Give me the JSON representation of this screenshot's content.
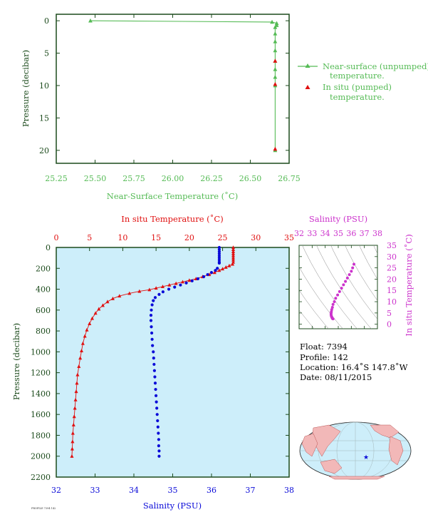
{
  "colors": {
    "green": "#55bb55",
    "red": "#e01010",
    "blue": "#0a0ad8",
    "magenta": "#cc33cc",
    "axisDark": "#1b4a1b",
    "plotBg": "#cdeefa",
    "land": "#f2b8b8",
    "ocean": "#cdeefa"
  },
  "chart_data": [
    {
      "type": "line",
      "xlabel": "Near-Surface Temperature (˚C)",
      "ylabel": "Pressure (decibar)",
      "xlim": [
        25.25,
        26.75
      ],
      "ylim": [
        22,
        -1
      ],
      "xticks": [
        "25.25",
        "25.50",
        "25.75",
        "26.00",
        "26.25",
        "26.50",
        "26.75"
      ],
      "yticks": [
        "0",
        "5",
        "10",
        "15",
        "20"
      ],
      "legend_position": "right",
      "series": [
        {
          "name": "Near-surface (unpumped) temperature.",
          "color": "#55bb55",
          "points": [
            [
              25.47,
              0.0
            ],
            [
              26.64,
              0.2
            ],
            [
              26.67,
              0.4
            ],
            [
              26.67,
              0.7
            ],
            [
              26.66,
              1.0
            ],
            [
              26.66,
              2.0
            ],
            [
              26.66,
              3.2
            ],
            [
              26.66,
              4.6
            ],
            [
              26.66,
              6.2
            ],
            [
              26.66,
              7.5
            ],
            [
              26.66,
              8.7
            ],
            [
              26.66,
              10.0
            ],
            [
              26.66,
              20.0
            ]
          ]
        },
        {
          "name": "In situ (pumped) temperature.",
          "color": "#e01010",
          "points": [
            [
              26.66,
              6.2
            ],
            [
              26.66,
              9.8
            ],
            [
              26.66,
              19.8
            ]
          ]
        }
      ]
    },
    {
      "type": "scatter",
      "top_xlabel": "In situ Temperature (˚C)",
      "bottom_xlabel": "Salinity (PSU)",
      "ylabel": "Pressure (decibar)",
      "temp_xlim": [
        0,
        35
      ],
      "sal_xlim": [
        32,
        38
      ],
      "ylim": [
        2200,
        0
      ],
      "temp_ticks": [
        "0",
        "5",
        "10",
        "15",
        "20",
        "25",
        "30",
        "35"
      ],
      "sal_ticks": [
        "32",
        "33",
        "34",
        "35",
        "36",
        "37",
        "38"
      ],
      "yticks": [
        "0",
        "200",
        "400",
        "600",
        "800",
        "1000",
        "1200",
        "1400",
        "1600",
        "1800",
        "2000",
        "2200"
      ],
      "series": [
        {
          "name": "In situ Temperature (˚C)",
          "color": "#e01010",
          "axis": "temp",
          "points": [
            [
              26.6,
              0
            ],
            [
              26.6,
              20
            ],
            [
              26.6,
              40
            ],
            [
              26.6,
              60
            ],
            [
              26.6,
              80
            ],
            [
              26.6,
              100
            ],
            [
              26.6,
              120
            ],
            [
              26.6,
              140
            ],
            [
              26.5,
              160
            ],
            [
              26.0,
              175
            ],
            [
              25.5,
              190
            ],
            [
              25.0,
              205
            ],
            [
              24.5,
              220
            ],
            [
              23.8,
              240
            ],
            [
              23.0,
              260
            ],
            [
              22.0,
              280
            ],
            [
              21.0,
              300
            ],
            [
              20.0,
              315
            ],
            [
              19.0,
              330
            ],
            [
              18.0,
              345
            ],
            [
              17.0,
              360
            ],
            [
              16.0,
              375
            ],
            [
              15.0,
              390
            ],
            [
              14.0,
              405
            ],
            [
              12.5,
              420
            ],
            [
              11.0,
              440
            ],
            [
              9.5,
              465
            ],
            [
              8.5,
              490
            ],
            [
              7.7,
              520
            ],
            [
              7.0,
              555
            ],
            [
              6.4,
              590
            ],
            [
              5.9,
              630
            ],
            [
              5.4,
              680
            ],
            [
              5.0,
              730
            ],
            [
              4.6,
              790
            ],
            [
              4.3,
              850
            ],
            [
              4.0,
              920
            ],
            [
              3.8,
              990
            ],
            [
              3.6,
              1060
            ],
            [
              3.4,
              1140
            ],
            [
              3.2,
              1220
            ],
            [
              3.1,
              1300
            ],
            [
              3.0,
              1380
            ],
            [
              2.9,
              1460
            ],
            [
              2.8,
              1540
            ],
            [
              2.7,
              1620
            ],
            [
              2.6,
              1700
            ],
            [
              2.5,
              1780
            ],
            [
              2.45,
              1860
            ],
            [
              2.4,
              1930
            ],
            [
              2.35,
              2000
            ]
          ]
        },
        {
          "name": "Salinity (PSU)",
          "color": "#0a0ad8",
          "axis": "sal",
          "points": [
            [
              36.2,
              0
            ],
            [
              36.2,
              20
            ],
            [
              36.2,
              40
            ],
            [
              36.2,
              60
            ],
            [
              36.2,
              80
            ],
            [
              36.2,
              100
            ],
            [
              36.2,
              120
            ],
            [
              36.2,
              140
            ],
            [
              36.2,
              150
            ],
            [
              36.15,
              200
            ],
            [
              36.1,
              220
            ],
            [
              36.0,
              240
            ],
            [
              35.9,
              260
            ],
            [
              35.8,
              280
            ],
            [
              35.65,
              300
            ],
            [
              35.5,
              320
            ],
            [
              35.35,
              340
            ],
            [
              35.2,
              360
            ],
            [
              35.05,
              380
            ],
            [
              34.9,
              400
            ],
            [
              34.75,
              425
            ],
            [
              34.65,
              450
            ],
            [
              34.55,
              480
            ],
            [
              34.5,
              510
            ],
            [
              34.47,
              550
            ],
            [
              34.45,
              600
            ],
            [
              34.44,
              650
            ],
            [
              34.44,
              700
            ],
            [
              34.45,
              760
            ],
            [
              34.46,
              820
            ],
            [
              34.47,
              880
            ],
            [
              34.48,
              940
            ],
            [
              34.5,
              1000
            ],
            [
              34.51,
              1060
            ],
            [
              34.52,
              1120
            ],
            [
              34.53,
              1180
            ],
            [
              34.54,
              1240
            ],
            [
              34.55,
              1300
            ],
            [
              34.56,
              1360
            ],
            [
              34.57,
              1420
            ],
            [
              34.58,
              1480
            ],
            [
              34.59,
              1540
            ],
            [
              34.6,
              1600
            ],
            [
              34.61,
              1660
            ],
            [
              34.62,
              1720
            ],
            [
              34.63,
              1780
            ],
            [
              34.64,
              1840
            ],
            [
              34.64,
              1900
            ],
            [
              34.65,
              1950
            ],
            [
              34.65,
              2000
            ]
          ]
        }
      ]
    },
    {
      "type": "scatter",
      "xlabel": "Salinity (PSU)",
      "ylabel": "In situ Temperature (˚C)",
      "xlim": [
        32,
        38
      ],
      "ylim": [
        -2,
        35
      ],
      "xticks": [
        "32",
        "33",
        "34",
        "35",
        "36",
        "37",
        "38"
      ],
      "yticks": [
        "0",
        "5",
        "10",
        "15",
        "20",
        "25",
        "30",
        "35"
      ],
      "series": [
        {
          "color": "#cc33cc",
          "points": [
            [
              36.2,
              26.6
            ],
            [
              36.1,
              25.0
            ],
            [
              36.0,
              23.5
            ],
            [
              35.85,
              22.0
            ],
            [
              35.7,
              20.5
            ],
            [
              35.55,
              19.0
            ],
            [
              35.4,
              17.5
            ],
            [
              35.25,
              16.0
            ],
            [
              35.1,
              14.5
            ],
            [
              34.95,
              13.0
            ],
            [
              34.8,
              11.5
            ],
            [
              34.7,
              10.0
            ],
            [
              34.6,
              8.8
            ],
            [
              34.55,
              7.5
            ],
            [
              34.5,
              6.5
            ],
            [
              34.47,
              5.5
            ],
            [
              34.45,
              4.8
            ],
            [
              34.45,
              4.2
            ],
            [
              34.47,
              3.6
            ],
            [
              34.5,
              3.2
            ],
            [
              34.53,
              2.8
            ],
            [
              34.56,
              2.5
            ],
            [
              34.6,
              2.4
            ]
          ]
        }
      ]
    }
  ],
  "info": {
    "float": "Float: 7394",
    "profile": "Profile: 142",
    "location": "Location: 16.4˚S 147.8˚W",
    "date": "Date: 08/11/2015"
  },
  "footer_text": "PROFILE 7394 142"
}
